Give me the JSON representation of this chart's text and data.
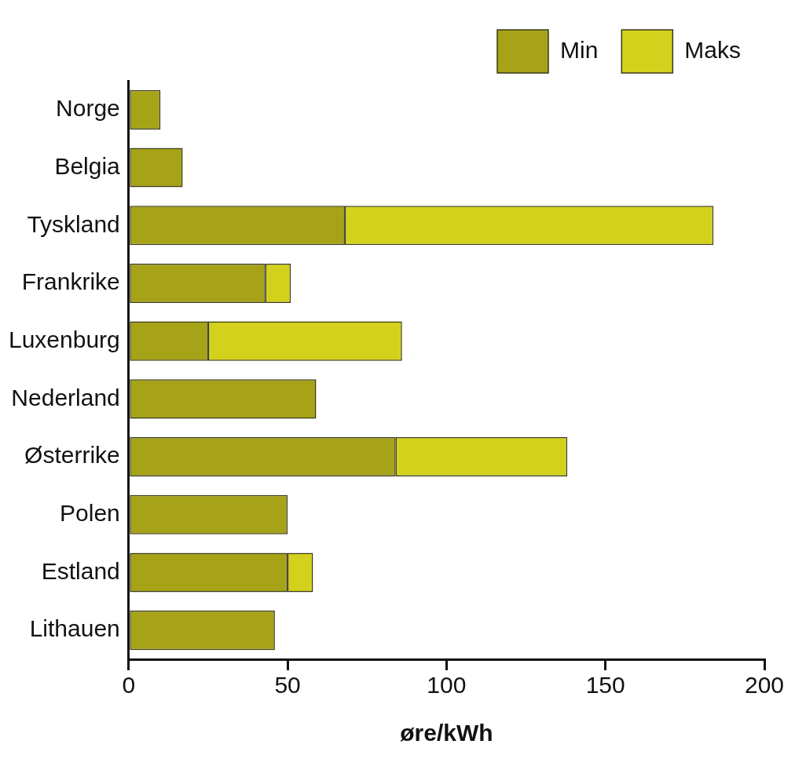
{
  "chart_data": {
    "type": "bar",
    "orientation": "horizontal",
    "stacked": true,
    "xlabel": "øre/kWh",
    "categories": [
      "Norge",
      "Belgia",
      "Tyskland",
      "Frankrike",
      "Luxenburg",
      "Nederland",
      "Østerrike",
      "Polen",
      "Estland",
      "Lithauen"
    ],
    "series": [
      {
        "name": "Min",
        "color": "#a6a318",
        "values": [
          10,
          17,
          68,
          43,
          25,
          59,
          84,
          50,
          50,
          46
        ]
      },
      {
        "name": "Maks",
        "color": "#d4d11c",
        "values": [
          null,
          null,
          116,
          8,
          61,
          null,
          54,
          null,
          8,
          null
        ]
      }
    ],
    "xlim": [
      0,
      200
    ],
    "xticks": [
      0,
      50,
      100,
      150,
      200
    ],
    "grid": false,
    "legend": "top right"
  }
}
